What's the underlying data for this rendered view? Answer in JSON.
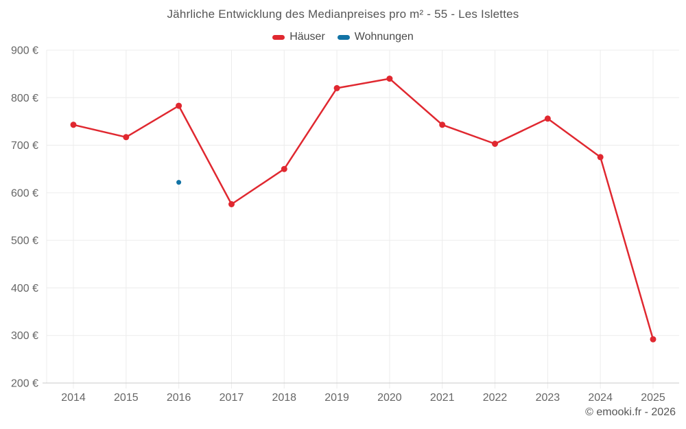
{
  "footer": "© emooki.fr - 2026",
  "colors": {
    "series_red": "#e02830",
    "series_blue": "#1273a5",
    "grid": "#ececec",
    "axis": "#c9c9c9",
    "tick_text": "#666666",
    "title_text": "#555555",
    "background": "#ffffff"
  },
  "chart_data": {
    "type": "line",
    "title": "Jährliche Entwicklung des Medianpreises pro m² - 55 - Les Islettes",
    "xlabel": "",
    "ylabel": "",
    "x": [
      2014,
      2015,
      2016,
      2017,
      2018,
      2019,
      2020,
      2021,
      2022,
      2023,
      2024,
      2025
    ],
    "series": [
      {
        "name": "Häuser",
        "color": "#e02830",
        "values": [
          743,
          717,
          783,
          576,
          650,
          820,
          840,
          743,
          703,
          756,
          675,
          292
        ]
      },
      {
        "name": "Wohnungen",
        "color": "#1273a5",
        "values": [
          null,
          null,
          622,
          null,
          null,
          null,
          null,
          null,
          null,
          null,
          null,
          null
        ]
      }
    ],
    "ylim": [
      200,
      900
    ],
    "ytick_step": 100,
    "ytick_suffix": " €",
    "grid": true,
    "legend_position": "top"
  }
}
